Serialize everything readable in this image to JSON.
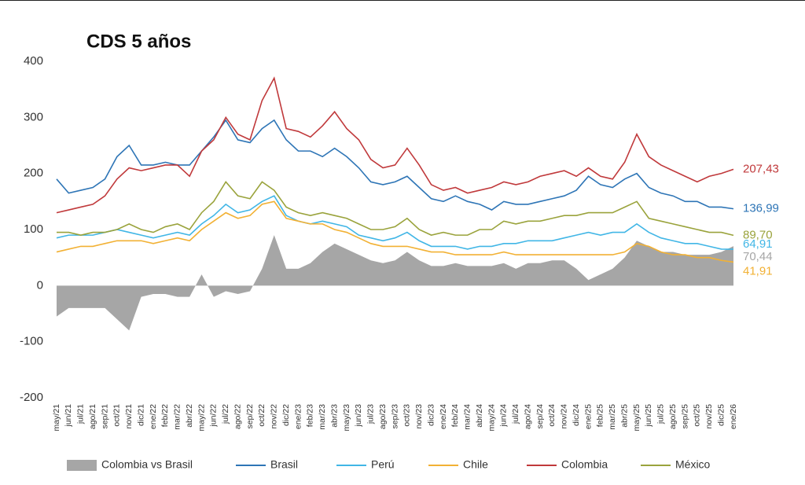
{
  "chart_data": {
    "type": "line",
    "title": "CDS 5 años",
    "categories": [
      "may/21",
      "jun/21",
      "jul/21",
      "ago/21",
      "sep/21",
      "oct/21",
      "nov/21",
      "dic/21",
      "ene/22",
      "feb/22",
      "mar/22",
      "abr/22",
      "may/22",
      "jun/22",
      "jul/22",
      "ago/22",
      "sep/22",
      "oct/22",
      "nov/22",
      "dic/22",
      "ene/23",
      "feb/23",
      "mar/23",
      "abr/23",
      "may/23",
      "jun/23",
      "jul/23",
      "ago/23",
      "sep/23",
      "oct/23",
      "nov/23",
      "dic/23",
      "ene/24",
      "feb/24",
      "mar/24",
      "abr/24",
      "may/24",
      "jun/24",
      "jul/24",
      "ago/24",
      "sep/24",
      "oct/24",
      "nov/24",
      "dic/24",
      "ene/25",
      "feb/25",
      "mar/25",
      "abr/25",
      "may/25",
      "jun/25",
      "jul/25",
      "ago/25",
      "sep/25",
      "oct/25",
      "nov/25",
      "dic/25",
      "ene/26"
    ],
    "series": [
      {
        "name": "Colombia vs Brasil",
        "type": "area",
        "color": "#a6a6a6",
        "values": [
          -55,
          -40,
          -40,
          -40,
          -40,
          -60,
          -80,
          -20,
          -15,
          -15,
          -20,
          -20,
          20,
          -20,
          -10,
          -15,
          -10,
          30,
          90,
          30,
          30,
          40,
          60,
          75,
          65,
          55,
          45,
          40,
          45,
          60,
          45,
          35,
          35,
          40,
          35,
          35,
          35,
          40,
          30,
          40,
          40,
          45,
          45,
          30,
          10,
          20,
          30,
          50,
          80,
          70,
          60,
          60,
          55,
          55,
          55,
          60,
          70.44
        ],
        "value_labels": [
          null,
          null,
          null,
          null,
          null,
          null,
          null,
          null,
          null,
          null,
          null,
          null,
          null,
          null,
          null,
          null,
          null,
          null,
          null,
          null,
          null,
          null,
          null,
          null,
          null,
          null,
          null,
          null,
          null,
          null,
          null,
          null,
          null,
          null,
          null,
          null,
          null,
          null,
          null,
          null,
          null,
          null,
          null,
          null,
          null,
          null,
          null,
          null,
          null,
          null,
          null,
          null,
          null,
          null,
          null,
          null,
          "70,44"
        ]
      },
      {
        "name": "Brasil",
        "type": "line",
        "color": "#2e75b6",
        "values": [
          190,
          165,
          170,
          175,
          190,
          230,
          250,
          215,
          215,
          220,
          215,
          215,
          240,
          265,
          295,
          260,
          255,
          280,
          295,
          260,
          240,
          240,
          230,
          245,
          230,
          210,
          185,
          180,
          185,
          195,
          175,
          155,
          150,
          160,
          150,
          145,
          135,
          150,
          145,
          145,
          150,
          155,
          160,
          170,
          195,
          180,
          175,
          190,
          200,
          175,
          165,
          160,
          150,
          150,
          140,
          140,
          136.99
        ],
        "value_labels": [
          null,
          null,
          null,
          null,
          null,
          null,
          null,
          null,
          null,
          null,
          null,
          null,
          null,
          null,
          null,
          null,
          null,
          null,
          null,
          null,
          null,
          null,
          null,
          null,
          null,
          null,
          null,
          null,
          null,
          null,
          null,
          null,
          null,
          null,
          null,
          null,
          null,
          null,
          null,
          null,
          null,
          null,
          null,
          null,
          null,
          null,
          null,
          null,
          null,
          null,
          null,
          null,
          null,
          null,
          null,
          null,
          "136,99"
        ]
      },
      {
        "name": "Perú",
        "type": "line",
        "color": "#41b6e6",
        "values": [
          85,
          90,
          90,
          90,
          95,
          100,
          95,
          90,
          85,
          90,
          95,
          90,
          110,
          125,
          145,
          130,
          135,
          150,
          160,
          125,
          115,
          110,
          115,
          110,
          105,
          90,
          85,
          80,
          85,
          95,
          80,
          70,
          70,
          70,
          65,
          70,
          70,
          75,
          75,
          80,
          80,
          80,
          85,
          90,
          95,
          90,
          95,
          95,
          110,
          95,
          85,
          80,
          75,
          75,
          70,
          65,
          64.91
        ],
        "value_labels": [
          null,
          null,
          null,
          null,
          null,
          null,
          null,
          null,
          null,
          null,
          null,
          null,
          null,
          null,
          null,
          null,
          null,
          null,
          null,
          null,
          null,
          null,
          null,
          null,
          null,
          null,
          null,
          null,
          null,
          null,
          null,
          null,
          null,
          null,
          null,
          null,
          null,
          null,
          null,
          null,
          null,
          null,
          null,
          null,
          null,
          null,
          null,
          null,
          null,
          null,
          null,
          null,
          null,
          null,
          null,
          null,
          "64,91"
        ]
      },
      {
        "name": "Chile",
        "type": "line",
        "color": "#f2b134",
        "values": [
          60,
          65,
          70,
          70,
          75,
          80,
          80,
          80,
          75,
          80,
          85,
          80,
          100,
          115,
          130,
          120,
          125,
          145,
          150,
          120,
          115,
          110,
          110,
          100,
          95,
          85,
          75,
          70,
          70,
          70,
          65,
          60,
          60,
          55,
          55,
          55,
          55,
          60,
          55,
          55,
          55,
          55,
          55,
          55,
          55,
          55,
          55,
          60,
          75,
          70,
          60,
          55,
          55,
          50,
          50,
          45,
          41.91
        ],
        "value_labels": [
          null,
          null,
          null,
          null,
          null,
          null,
          null,
          null,
          null,
          null,
          null,
          null,
          null,
          null,
          null,
          null,
          null,
          null,
          null,
          null,
          null,
          null,
          null,
          null,
          null,
          null,
          null,
          null,
          null,
          null,
          null,
          null,
          null,
          null,
          null,
          null,
          null,
          null,
          null,
          null,
          null,
          null,
          null,
          null,
          null,
          null,
          null,
          null,
          null,
          null,
          null,
          null,
          null,
          null,
          null,
          null,
          "41,91"
        ]
      },
      {
        "name": "Colombia",
        "type": "line",
        "color": "#c0393b",
        "values": [
          130,
          135,
          140,
          145,
          160,
          190,
          210,
          205,
          210,
          215,
          215,
          195,
          240,
          260,
          300,
          270,
          260,
          330,
          370,
          280,
          275,
          265,
          285,
          310,
          280,
          260,
          225,
          210,
          215,
          245,
          215,
          180,
          170,
          175,
          165,
          170,
          175,
          185,
          180,
          185,
          195,
          200,
          205,
          195,
          210,
          195,
          190,
          220,
          270,
          230,
          215,
          205,
          195,
          185,
          195,
          200,
          207.43
        ],
        "value_labels": [
          null,
          null,
          null,
          null,
          null,
          null,
          null,
          null,
          null,
          null,
          null,
          null,
          null,
          null,
          null,
          null,
          null,
          null,
          null,
          null,
          null,
          null,
          null,
          null,
          null,
          null,
          null,
          null,
          null,
          null,
          null,
          null,
          null,
          null,
          null,
          null,
          null,
          null,
          null,
          null,
          null,
          null,
          null,
          null,
          null,
          null,
          null,
          null,
          null,
          null,
          null,
          null,
          null,
          null,
          null,
          null,
          "207,43"
        ]
      },
      {
        "name": "México",
        "type": "line",
        "color": "#9aa33c",
        "values": [
          95,
          95,
          90,
          95,
          95,
          100,
          110,
          100,
          95,
          105,
          110,
          100,
          130,
          150,
          185,
          160,
          155,
          185,
          170,
          140,
          130,
          125,
          130,
          125,
          120,
          110,
          100,
          100,
          105,
          120,
          100,
          90,
          95,
          90,
          90,
          100,
          100,
          115,
          110,
          115,
          115,
          120,
          125,
          125,
          130,
          130,
          130,
          140,
          150,
          120,
          115,
          110,
          105,
          100,
          95,
          95,
          89.7
        ],
        "value_labels": [
          null,
          null,
          null,
          null,
          null,
          null,
          null,
          null,
          null,
          null,
          null,
          null,
          null,
          null,
          null,
          null,
          null,
          null,
          null,
          null,
          null,
          null,
          null,
          null,
          null,
          null,
          null,
          null,
          null,
          null,
          null,
          null,
          null,
          null,
          null,
          null,
          null,
          null,
          null,
          null,
          null,
          null,
          null,
          null,
          null,
          null,
          null,
          null,
          null,
          null,
          null,
          null,
          null,
          null,
          null,
          null,
          "89,70"
        ]
      }
    ],
    "ylim": [
      -200,
      400
    ],
    "yticks": [
      -200,
      -100,
      0,
      100,
      200,
      300,
      400
    ],
    "grid": false
  }
}
